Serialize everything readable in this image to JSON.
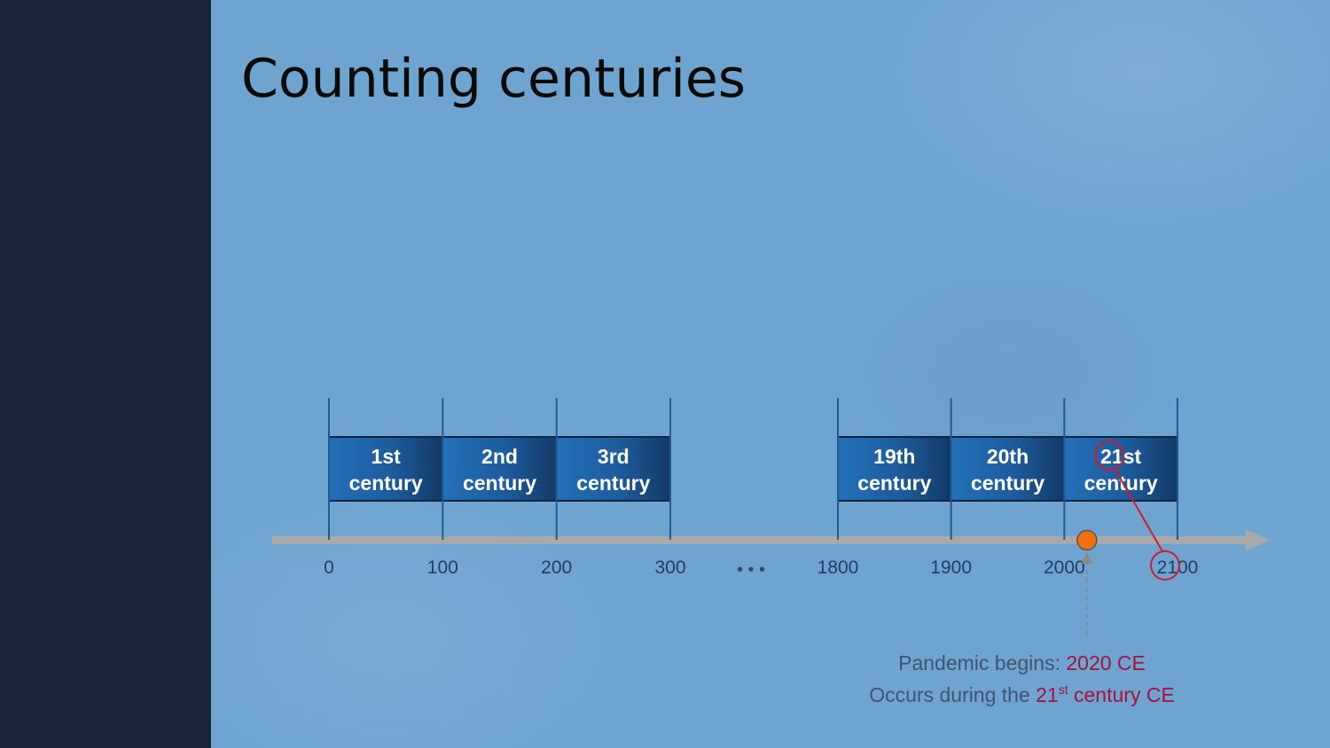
{
  "title": "Counting centuries",
  "timeline": {
    "ticks": [
      {
        "label": "0",
        "value": 0
      },
      {
        "label": "100",
        "value": 100
      },
      {
        "label": "200",
        "value": 200
      },
      {
        "label": "300",
        "value": 300
      },
      {
        "label": "1800",
        "value": 1800
      },
      {
        "label": "1900",
        "value": 1900
      },
      {
        "label": "2000",
        "value": 2000
      },
      {
        "label": "2100",
        "value": 2100
      }
    ],
    "centuries": [
      {
        "line1": "1st",
        "line2": "century",
        "start": 0,
        "end": 100
      },
      {
        "line1": "2nd",
        "line2": "century",
        "start": 100,
        "end": 200
      },
      {
        "line1": "3rd",
        "line2": "century",
        "start": 200,
        "end": 300
      },
      {
        "line1": "19th",
        "line2": "century",
        "start": 1800,
        "end": 1900
      },
      {
        "line1": "20th",
        "line2": "century",
        "start": 1900,
        "end": 2000
      },
      {
        "line1": "21st",
        "line2": "century",
        "start": 2000,
        "end": 2100
      }
    ],
    "gap_symbol": "• • •",
    "event": {
      "year": 2020
    }
  },
  "caption": {
    "line1_prefix": "Pandemic begins: ",
    "line1_highlight": "2020 CE",
    "line2_prefix": "Occurs during the ",
    "line2_num": "21",
    "line2_sup": "st",
    "line2_suffix": " century CE"
  },
  "colors": {
    "background": "#6fa4d0",
    "sidebar": "#182637",
    "century_box": "#1d5c9c",
    "axis": "#a8a8a8",
    "event_marker": "#f2700f",
    "highlight": "#a31240",
    "annotation": "#d11a2a"
  }
}
